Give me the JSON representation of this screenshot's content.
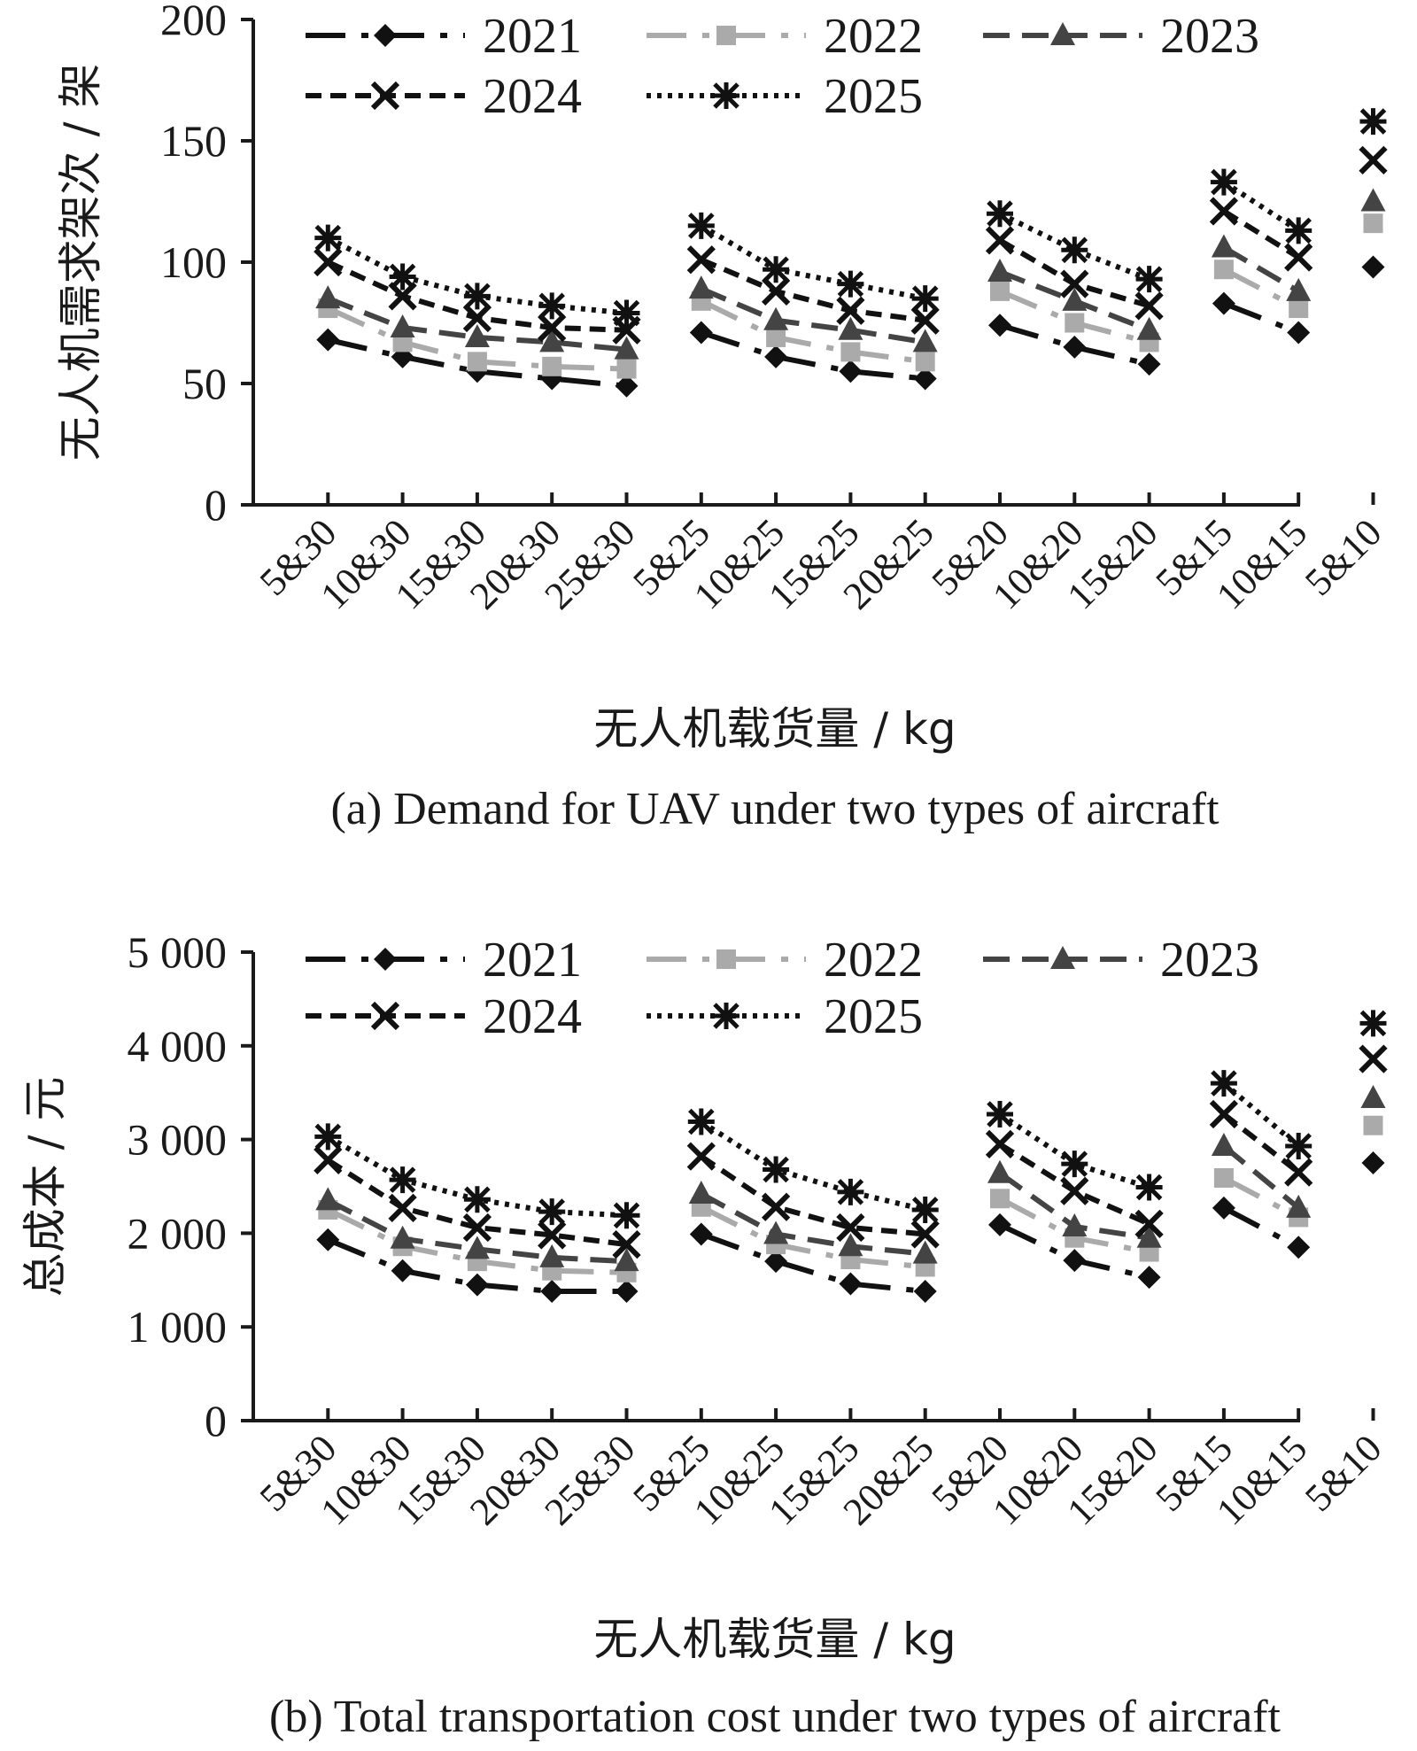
{
  "chart_data": [
    {
      "type": "line",
      "caption": "(a) Demand for UAV under two types of aircraft",
      "xlabel": "无人机载货量 / kg",
      "ylabel": "无人机需求架次 / 架",
      "ylim": [
        0,
        200
      ],
      "yticks": [
        0,
        50,
        100,
        150,
        200
      ],
      "ytick_labels": [
        "0",
        "50",
        "100",
        "150",
        "200"
      ],
      "legend_position": "top",
      "categories": [
        "5&30",
        "10&30",
        "15&30",
        "20&30",
        "25&30",
        "5&25",
        "10&25",
        "15&25",
        "20&25",
        "5&20",
        "10&20",
        "15&20",
        "5&15",
        "10&15",
        "5&10"
      ],
      "groups": [
        [
          0,
          4
        ],
        [
          5,
          8
        ],
        [
          9,
          11
        ],
        [
          12,
          13
        ],
        [
          14,
          14
        ]
      ],
      "series": [
        {
          "name": "2021",
          "color": "#111111",
          "marker": "diamond",
          "values": [
            68,
            61,
            55,
            52,
            49,
            71,
            61,
            55,
            52,
            74,
            65,
            58,
            83,
            71,
            98
          ]
        },
        {
          "name": "2022",
          "color": "#aaaaaa",
          "marker": "square",
          "values": [
            81,
            67,
            59,
            57,
            56,
            84,
            69,
            63,
            59,
            88,
            75,
            67,
            97,
            81,
            116
          ]
        },
        {
          "name": "2023",
          "color": "#444444",
          "marker": "triangle",
          "values": [
            85,
            73,
            69,
            67,
            64,
            89,
            76,
            72,
            67,
            96,
            84,
            72,
            106,
            88,
            125
          ]
        },
        {
          "name": "2024",
          "color": "#111111",
          "marker": "x",
          "values": [
            100,
            86,
            77,
            73,
            72,
            101,
            88,
            80,
            76,
            109,
            91,
            82,
            121,
            102,
            142
          ]
        },
        {
          "name": "2025",
          "color": "#111111",
          "marker": "star",
          "values": [
            110,
            94,
            86,
            82,
            79,
            115,
            97,
            91,
            85,
            120,
            105,
            93,
            133,
            113,
            158
          ]
        }
      ]
    },
    {
      "type": "line",
      "caption": "(b) Total transportation cost under two types of aircraft",
      "xlabel": "无人机载货量 / kg",
      "ylabel": "总成本 / 元",
      "ylim": [
        0,
        5000
      ],
      "yticks": [
        0,
        1000,
        2000,
        3000,
        4000,
        5000
      ],
      "ytick_labels": [
        "0",
        "1 000",
        "2 000",
        "3 000",
        "4 000",
        "5 000"
      ],
      "legend_position": "top",
      "categories": [
        "5&30",
        "10&30",
        "15&30",
        "20&30",
        "25&30",
        "5&25",
        "10&25",
        "15&25",
        "20&25",
        "5&20",
        "10&20",
        "15&20",
        "5&15",
        "10&15",
        "5&10"
      ],
      "groups": [
        [
          0,
          4
        ],
        [
          5,
          8
        ],
        [
          9,
          11
        ],
        [
          12,
          13
        ],
        [
          14,
          14
        ]
      ],
      "series": [
        {
          "name": "2021",
          "color": "#111111",
          "marker": "diamond",
          "values": [
            1930,
            1600,
            1450,
            1380,
            1380,
            1990,
            1700,
            1460,
            1380,
            2090,
            1710,
            1530,
            2270,
            1850,
            2750
          ]
        },
        {
          "name": "2022",
          "color": "#aaaaaa",
          "marker": "square",
          "values": [
            2250,
            1860,
            1700,
            1600,
            1580,
            2280,
            1880,
            1720,
            1640,
            2370,
            1950,
            1800,
            2590,
            2170,
            3150
          ]
        },
        {
          "name": "2023",
          "color": "#444444",
          "marker": "triangle",
          "values": [
            2350,
            1940,
            1830,
            1740,
            1700,
            2420,
            1990,
            1860,
            1780,
            2640,
            2070,
            1950,
            2930,
            2270,
            3440
          ]
        },
        {
          "name": "2024",
          "color": "#111111",
          "marker": "x",
          "values": [
            2780,
            2270,
            2060,
            1980,
            1880,
            2820,
            2280,
            2060,
            1990,
            2950,
            2450,
            2100,
            3270,
            2650,
            3860
          ]
        },
        {
          "name": "2025",
          "color": "#111111",
          "marker": "star",
          "values": [
            3030,
            2570,
            2360,
            2230,
            2190,
            3190,
            2680,
            2440,
            2250,
            3270,
            2740,
            2490,
            3600,
            2930,
            4240
          ]
        }
      ]
    }
  ]
}
